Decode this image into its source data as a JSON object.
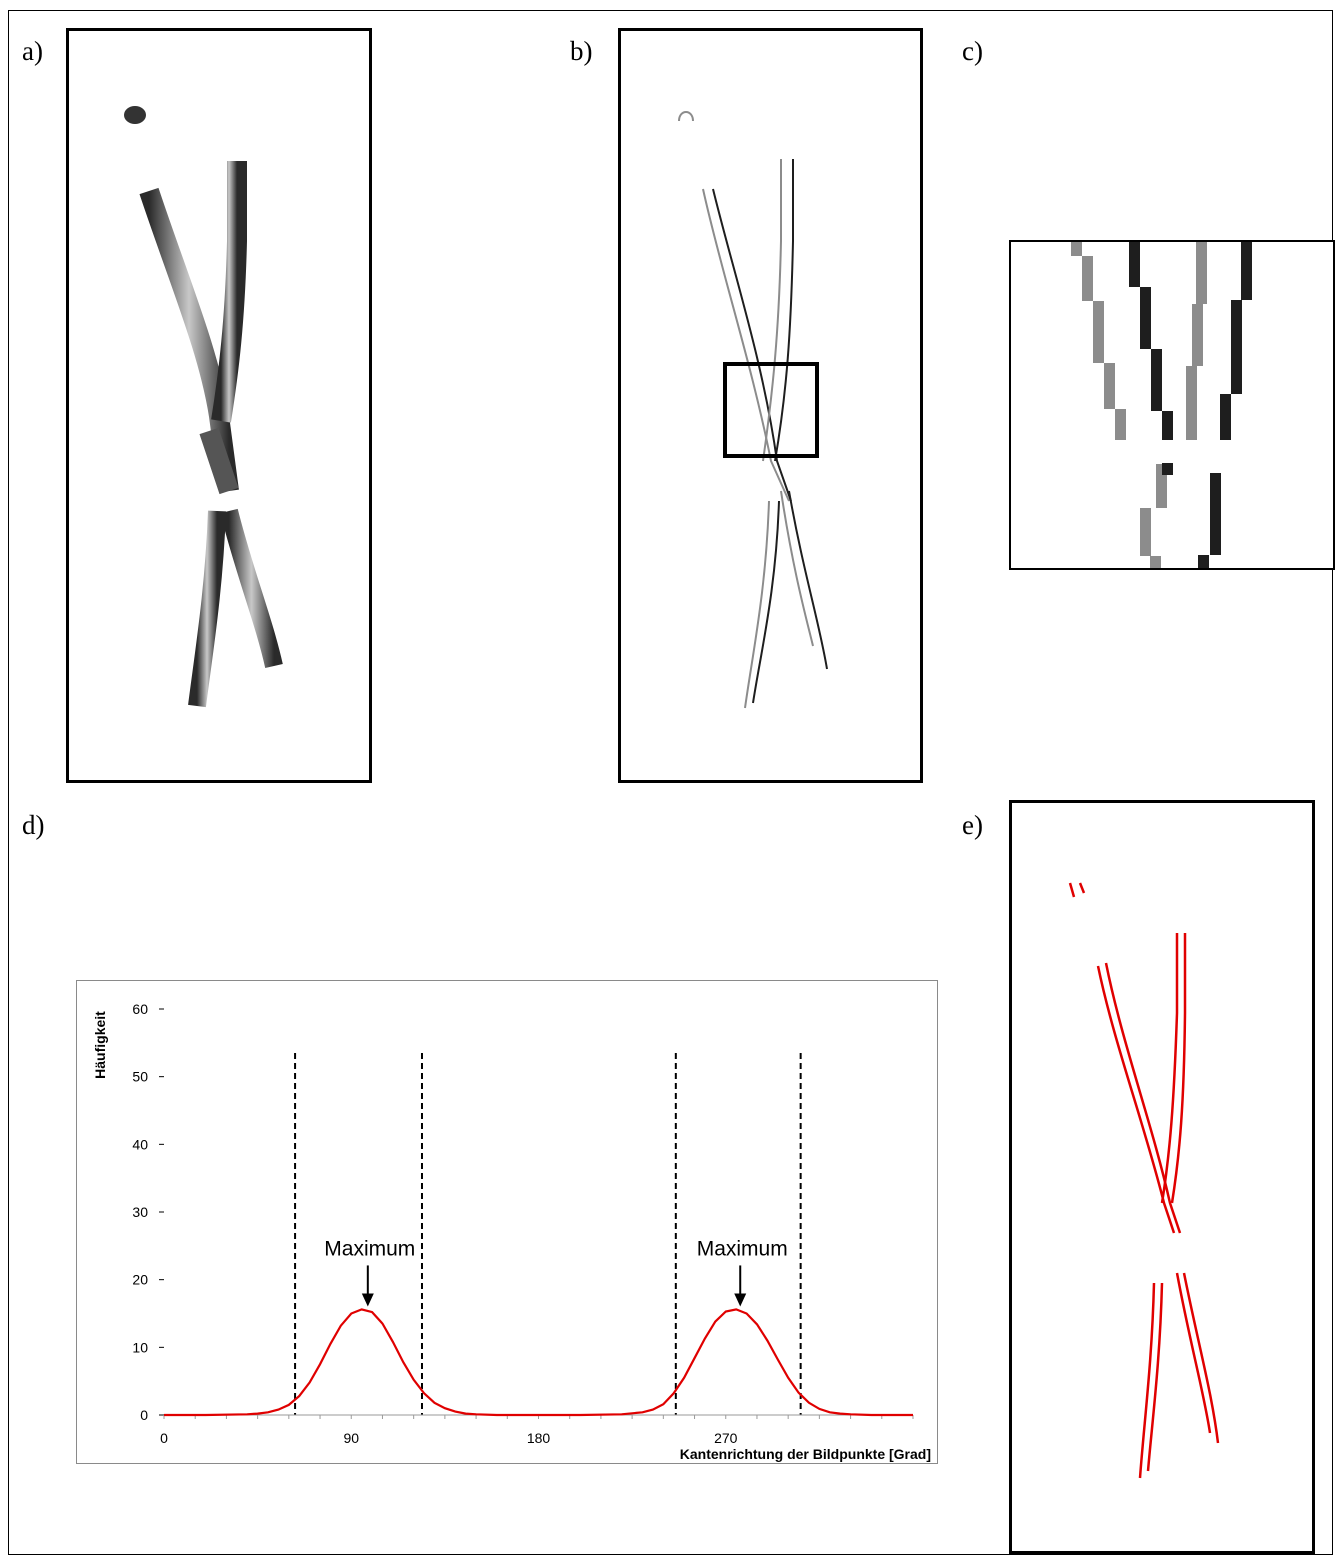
{
  "panels": {
    "a": {
      "label": "a)"
    },
    "b": {
      "label": "b)"
    },
    "c": {
      "label": "c)"
    },
    "d": {
      "label": "d)"
    },
    "e": {
      "label": "e)"
    }
  },
  "colors": {
    "curve": "#e00000",
    "dashed": "#000000",
    "panel_e_lines": "#e00000",
    "edge_light": "#8c8c8c",
    "edge_dark": "#1e1e1e"
  },
  "chart_data": {
    "type": "line",
    "title": "",
    "xlabel": "Kantenrichtung der Bildpunkte [Grad]",
    "ylabel": "Häufigkeit",
    "xlim": [
      0,
      360
    ],
    "ylim": [
      0,
      60
    ],
    "x_ticks": [
      "0",
      "90",
      "180",
      "270"
    ],
    "y_ticks": [
      "0",
      "10",
      "20",
      "30",
      "40",
      "50",
      "60"
    ],
    "grid": false,
    "series": [
      {
        "x": [
          0,
          20,
          40,
          45,
          50,
          55,
          60,
          65,
          70,
          75,
          80,
          85,
          90,
          95,
          100,
          105,
          110,
          115,
          120,
          125,
          130,
          135,
          140,
          145,
          150,
          160,
          180,
          200,
          220,
          230,
          235,
          240,
          245,
          250,
          255,
          260,
          265,
          270,
          275,
          280,
          285,
          290,
          295,
          300,
          305,
          310,
          315,
          320,
          325,
          330,
          340,
          360
        ],
        "y": [
          0,
          0,
          0.1,
          0.2,
          0.4,
          0.8,
          1.5,
          2.8,
          4.8,
          7.5,
          10.5,
          13.2,
          15.0,
          15.6,
          15.2,
          13.5,
          10.8,
          7.8,
          5.2,
          3.2,
          1.8,
          1.0,
          0.5,
          0.2,
          0.1,
          0,
          0,
          0,
          0.1,
          0.4,
          0.8,
          1.6,
          3.2,
          5.5,
          8.4,
          11.3,
          13.8,
          15.3,
          15.6,
          15.0,
          13.4,
          11.0,
          8.2,
          5.5,
          3.3,
          1.8,
          0.9,
          0.4,
          0.2,
          0.1,
          0,
          0
        ]
      }
    ],
    "vertical_lines_x": [
      63,
      124,
      246,
      306
    ],
    "annotations": [
      {
        "text": "Maximum",
        "x": 97,
        "y": 15.6
      },
      {
        "text": "Maximum",
        "x": 276,
        "y": 15.6
      }
    ]
  }
}
